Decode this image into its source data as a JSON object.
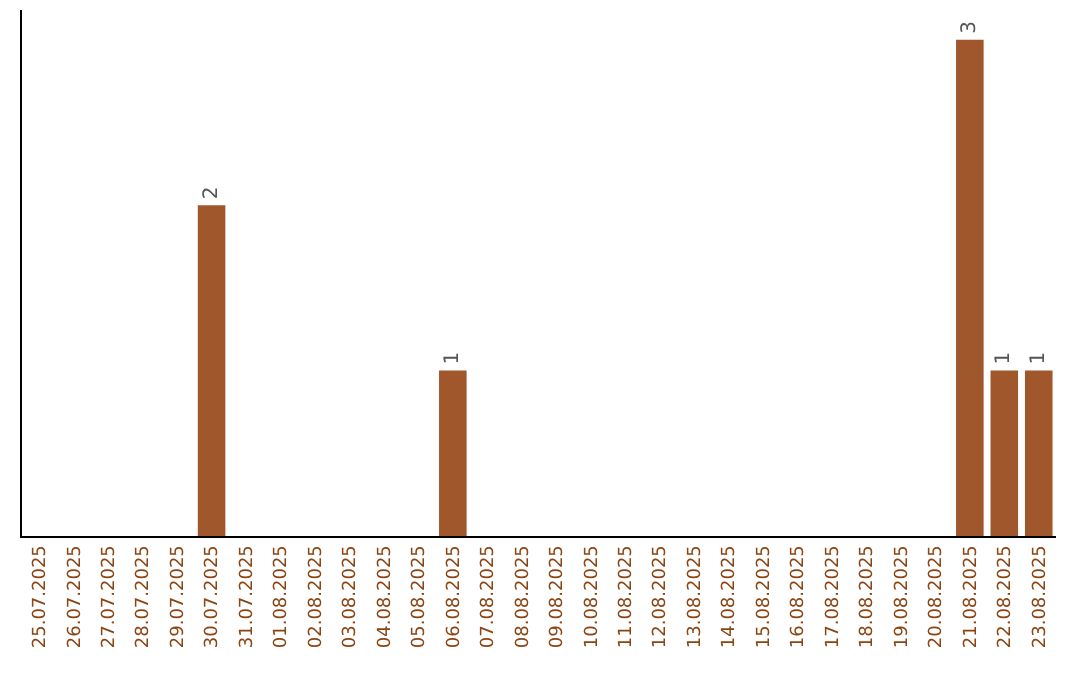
{
  "chart_data": {
    "type": "bar",
    "categories": [
      "25.07.2025",
      "26.07.2025",
      "27.07.2025",
      "28.07.2025",
      "29.07.2025",
      "30.07.2025",
      "31.07.2025",
      "01.08.2025",
      "02.08.2025",
      "03.08.2025",
      "04.08.2025",
      "05.08.2025",
      "06.08.2025",
      "07.08.2025",
      "08.08.2025",
      "09.08.2025",
      "10.08.2025",
      "11.08.2025",
      "12.08.2025",
      "13.08.2025",
      "14.08.2025",
      "15.08.2025",
      "16.08.2025",
      "17.08.2025",
      "18.08.2025",
      "19.08.2025",
      "20.08.2025",
      "21.08.2025",
      "22.08.2025",
      "23.08.2025"
    ],
    "values": [
      0,
      0,
      0,
      0,
      0,
      2,
      0,
      0,
      0,
      0,
      0,
      0,
      1,
      0,
      0,
      0,
      0,
      0,
      0,
      0,
      0,
      0,
      0,
      0,
      0,
      0,
      0,
      3,
      1,
      1
    ],
    "value_labels": [
      null,
      null,
      null,
      null,
      null,
      "2",
      null,
      null,
      null,
      null,
      null,
      null,
      "1",
      null,
      null,
      null,
      null,
      null,
      null,
      null,
      null,
      null,
      null,
      null,
      null,
      null,
      null,
      "3",
      "1",
      "1"
    ],
    "color": "#a0572b",
    "ylim": [
      0,
      3.18
    ],
    "tick_labels": "x",
    "legend": false
  }
}
